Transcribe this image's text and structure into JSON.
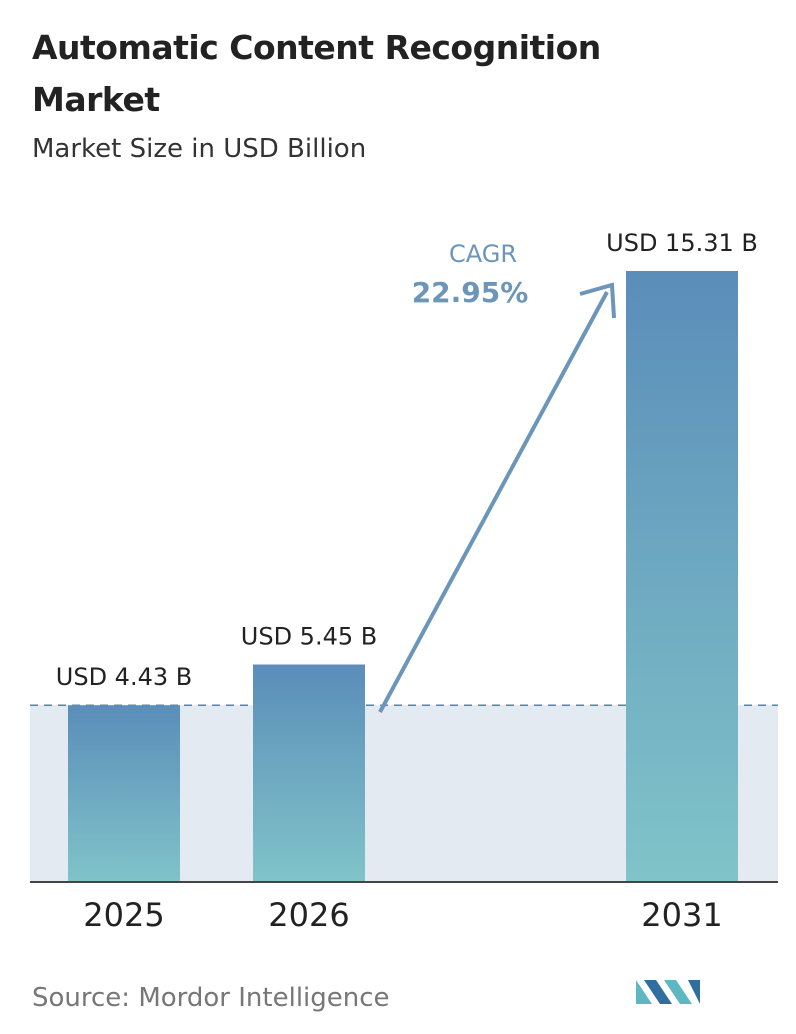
{
  "chart_data": {
    "type": "bar",
    "title": "Automatic Content Recognition Market",
    "subtitle": "Market Size in USD Billion",
    "categories": [
      "2025",
      "2026",
      "2031"
    ],
    "values": [
      4.43,
      5.45,
      15.31
    ],
    "value_labels": [
      "USD 4.43 B",
      "USD 5.45 B",
      "USD 15.31 B"
    ],
    "annotation": {
      "label": "CAGR",
      "text": "22.95%"
    },
    "source": "Source:  Mordor Intelligence"
  }
}
